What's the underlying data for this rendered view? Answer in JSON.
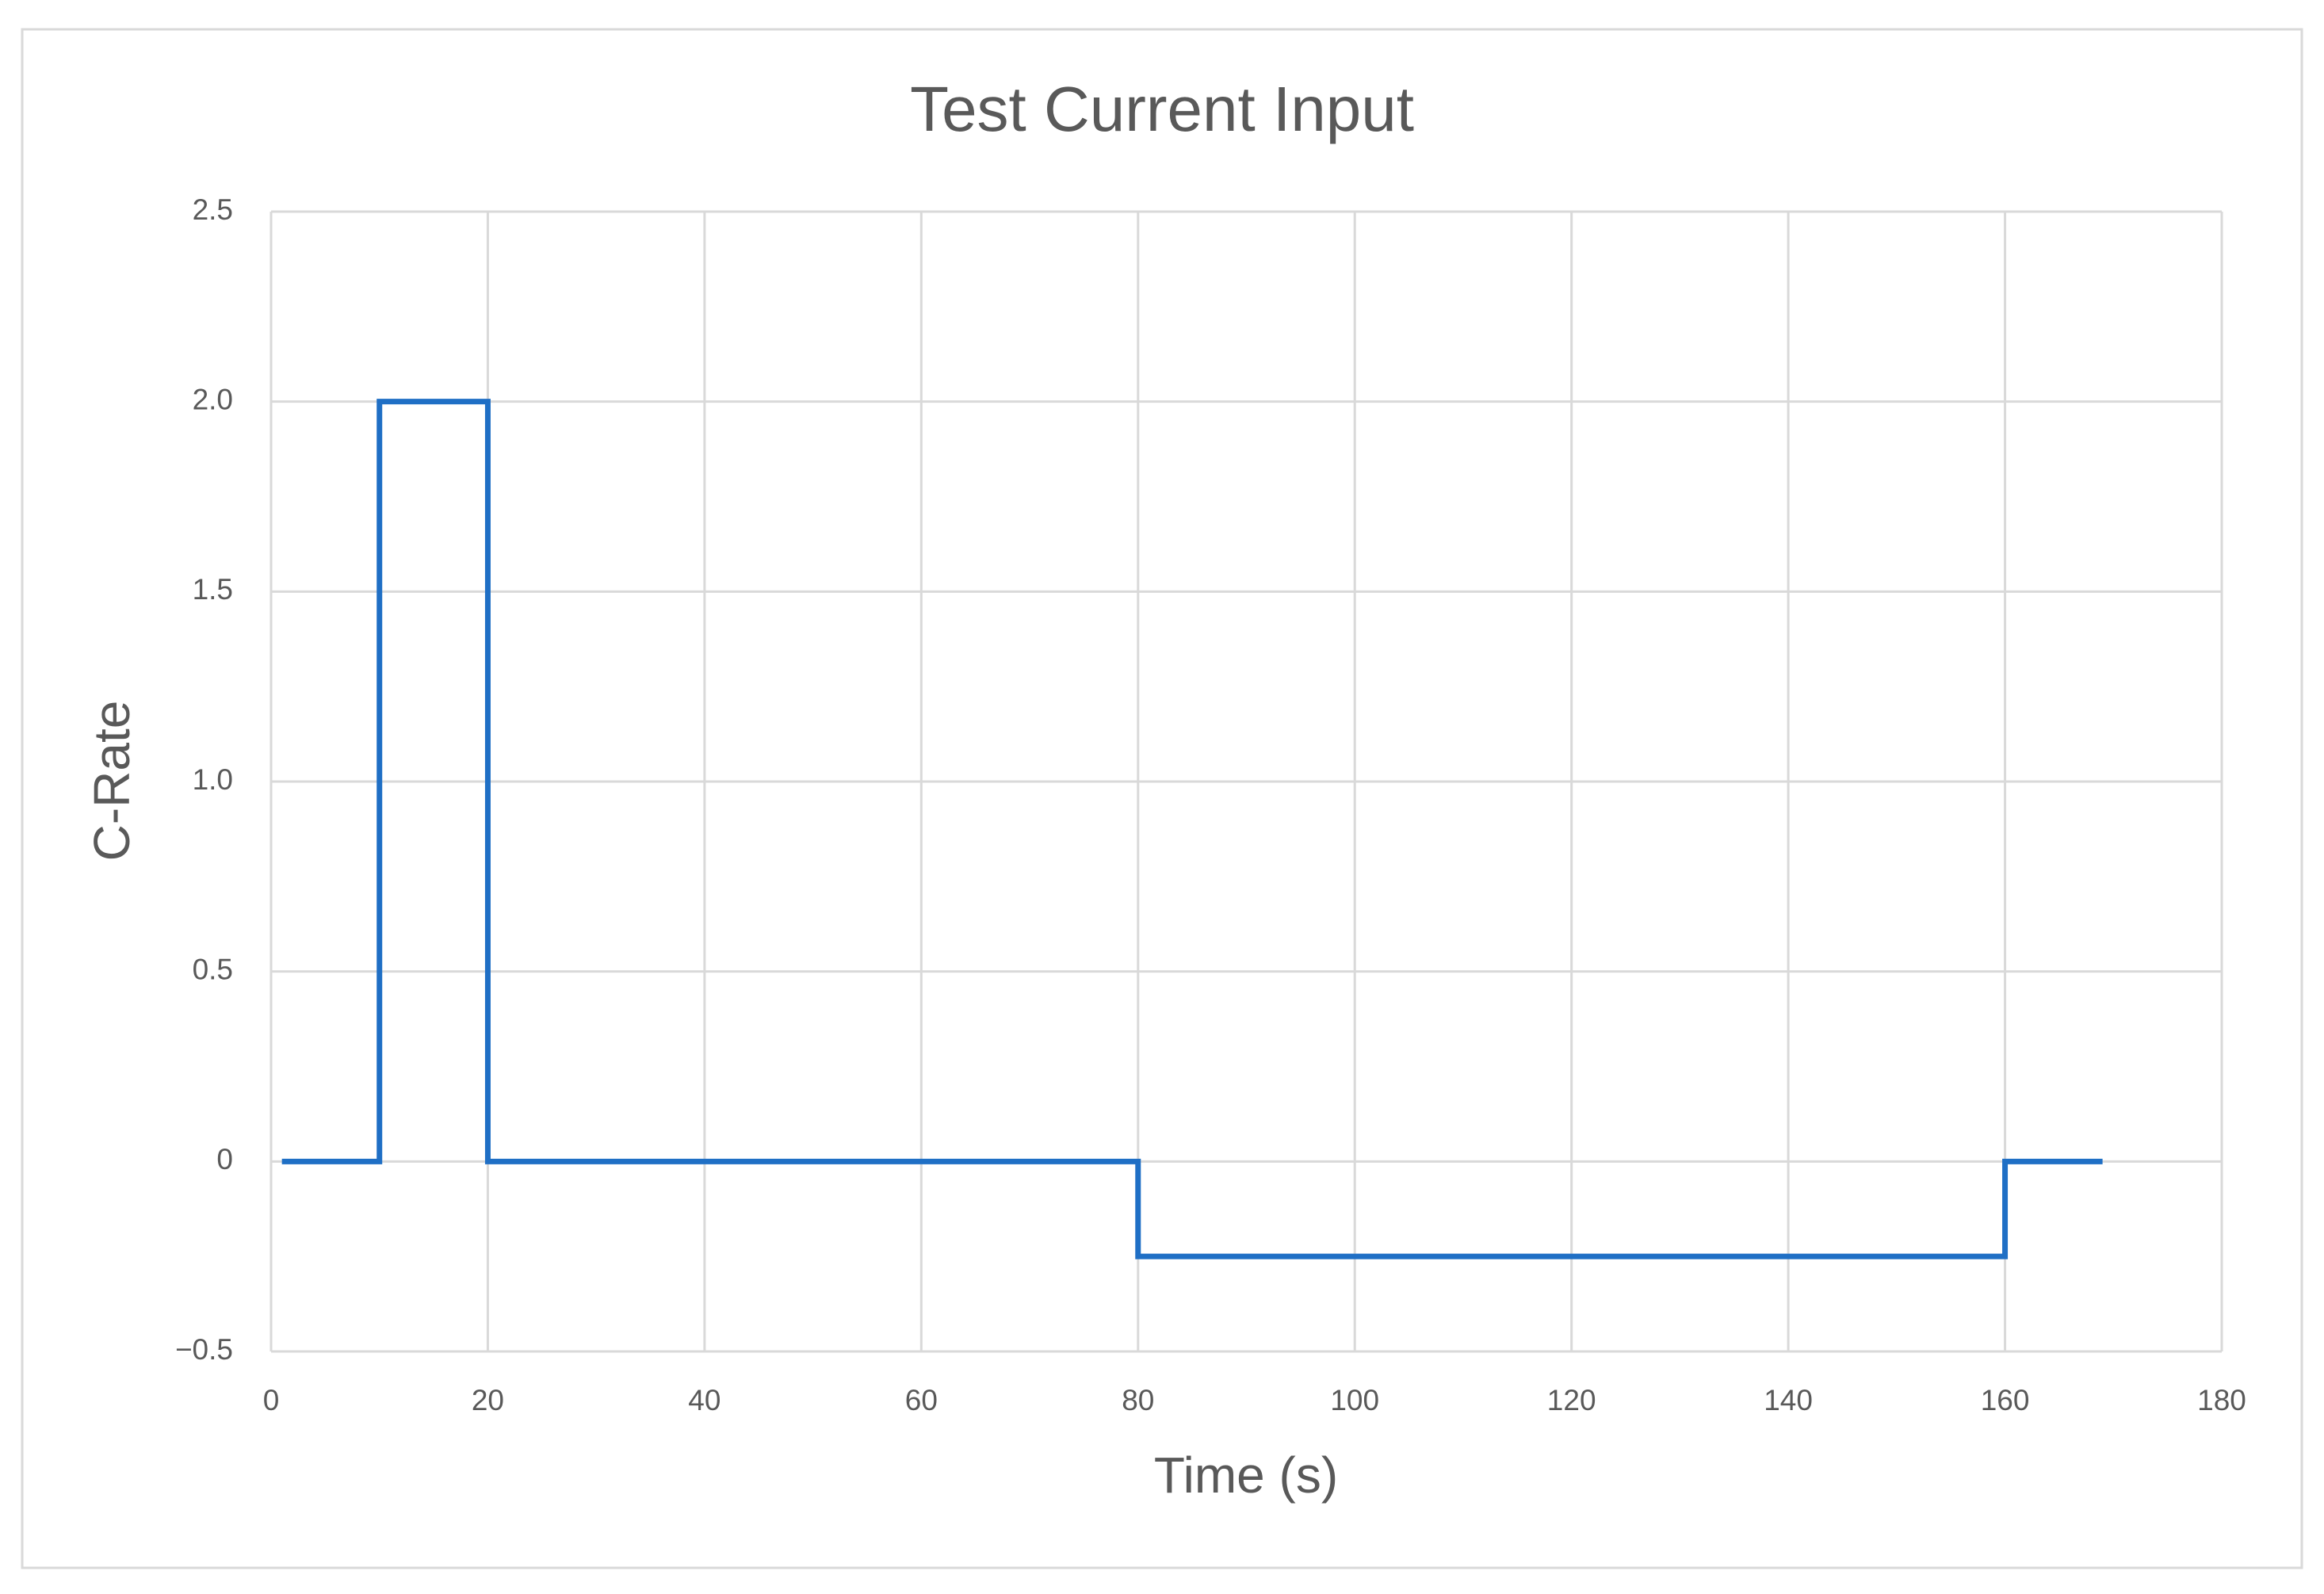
{
  "chart_data": {
    "type": "line",
    "title": "Test Current Input",
    "x_label": "Time (s)",
    "y_label": "C-Rate",
    "x": [
      1,
      10,
      10,
      20,
      20,
      80,
      80,
      160,
      160,
      169
    ],
    "series": [
      {
        "name": "C-Rate",
        "color": "#1f6fc5",
        "values": [
          0,
          0,
          2,
          2,
          0,
          0,
          -0.25,
          -0.25,
          0,
          0
        ]
      }
    ],
    "xlim": [
      0,
      180
    ],
    "xticks": [
      0,
      20,
      40,
      60,
      80,
      100,
      120,
      140,
      160,
      180
    ],
    "ylim": [
      -0.5,
      2.5
    ],
    "yticks": [
      {
        "value": -0.5,
        "label": "−0.5"
      },
      0,
      0.5,
      {
        "value": 1,
        "label": "1.0"
      },
      1.5,
      {
        "value": 2,
        "label": "2.0"
      },
      2.5
    ],
    "grid": true
  }
}
